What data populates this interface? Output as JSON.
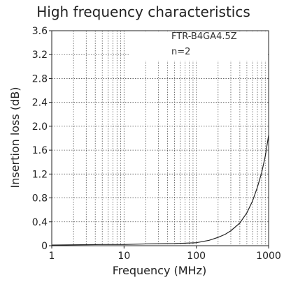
{
  "chart_data": {
    "type": "line",
    "title": "High frequency characteristics",
    "xlabel": "Frequency (MHz)",
    "ylabel": "Insertion loss (dB)",
    "x_scale": "log",
    "xlim": [
      1,
      1000
    ],
    "ylim": [
      0,
      3.6
    ],
    "x_ticks": [
      1,
      10,
      100,
      1000
    ],
    "x_tick_labels": [
      "1",
      "10",
      "100",
      "1000"
    ],
    "y_ticks": [
      0,
      0.4,
      0.8,
      1.2,
      1.6,
      2.0,
      2.4,
      2.8,
      3.2,
      3.6
    ],
    "y_tick_labels": [
      "0",
      "0.4",
      "0.8",
      "1.2",
      "1.6",
      "2.0",
      "2.4",
      "2.8",
      "3.2",
      "3.6"
    ],
    "grid": true,
    "annotations": [
      "FTR-B4GA4.5Z",
      "n=2"
    ],
    "series": [
      {
        "color": "#222222",
        "x": [
          1,
          2,
          5,
          10,
          20,
          50,
          100,
          150,
          200,
          250,
          300,
          400,
          500,
          600,
          700,
          800,
          900,
          1000
        ],
        "y": [
          0.01,
          0.015,
          0.02,
          0.02,
          0.03,
          0.035,
          0.05,
          0.09,
          0.14,
          0.19,
          0.25,
          0.38,
          0.55,
          0.75,
          0.98,
          1.22,
          1.5,
          1.85
        ]
      }
    ]
  }
}
